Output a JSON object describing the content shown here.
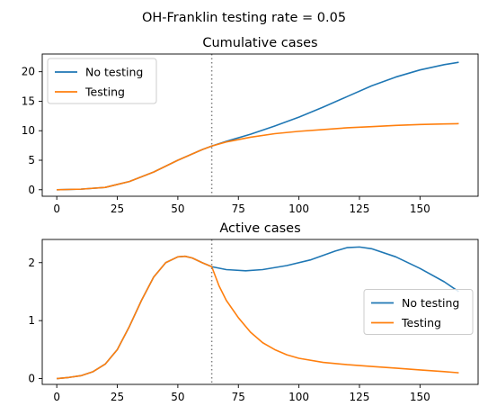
{
  "suptitle": "OH-Franklin testing rate = 0.05",
  "chart_data": [
    {
      "type": "line",
      "title": "Cumulative cases",
      "xlabel": "",
      "ylabel": "",
      "xlim": [
        -6,
        174
      ],
      "ylim": [
        -1.1,
        23
      ],
      "xticks": [
        0,
        25,
        50,
        75,
        100,
        125,
        150
      ],
      "yticks": [
        0,
        5,
        10,
        15,
        20
      ],
      "grid": false,
      "legend_position": "upper-left",
      "vline": {
        "x": 64,
        "color": "#808080",
        "style": "dotted"
      },
      "series": [
        {
          "name": "No testing",
          "color": "#1f77b4",
          "x": [
            0,
            10,
            20,
            30,
            40,
            50,
            60,
            64,
            70,
            80,
            90,
            100,
            110,
            120,
            130,
            140,
            150,
            160,
            166
          ],
          "y": [
            0,
            0.1,
            0.4,
            1.4,
            3.0,
            5.0,
            6.8,
            7.4,
            8.2,
            9.4,
            10.8,
            12.3,
            14.0,
            15.8,
            17.6,
            19.1,
            20.3,
            21.2,
            21.6
          ]
        },
        {
          "name": "Testing",
          "color": "#ff7f0e",
          "x": [
            0,
            10,
            20,
            30,
            40,
            50,
            60,
            64,
            70,
            80,
            90,
            100,
            110,
            120,
            130,
            140,
            150,
            160,
            166
          ],
          "y": [
            0,
            0.1,
            0.4,
            1.4,
            3.0,
            5.0,
            6.8,
            7.4,
            8.1,
            8.9,
            9.5,
            9.9,
            10.2,
            10.5,
            10.7,
            10.9,
            11.05,
            11.15,
            11.2
          ]
        }
      ]
    },
    {
      "type": "line",
      "title": "Active cases",
      "xlabel": "",
      "ylabel": "",
      "xlim": [
        -6,
        174
      ],
      "ylim": [
        -0.1,
        2.4
      ],
      "xticks": [
        0,
        25,
        50,
        75,
        100,
        125,
        150
      ],
      "yticks": [
        0,
        1,
        2
      ],
      "grid": false,
      "legend_position": "center-right",
      "vline": {
        "x": 64,
        "color": "#808080",
        "style": "dotted"
      },
      "series": [
        {
          "name": "No testing",
          "color": "#1f77b4",
          "x": [
            0,
            5,
            10,
            15,
            20,
            25,
            30,
            35,
            40,
            45,
            50,
            53,
            56,
            60,
            64,
            70,
            78,
            85,
            95,
            105,
            115,
            120,
            125,
            130,
            140,
            150,
            160,
            166
          ],
          "y": [
            0,
            0.02,
            0.05,
            0.12,
            0.25,
            0.5,
            0.9,
            1.35,
            1.75,
            2.0,
            2.1,
            2.11,
            2.08,
            2.0,
            1.93,
            1.88,
            1.86,
            1.88,
            1.95,
            2.05,
            2.2,
            2.26,
            2.27,
            2.24,
            2.1,
            1.9,
            1.67,
            1.5
          ]
        },
        {
          "name": "Testing",
          "color": "#ff7f0e",
          "x": [
            0,
            5,
            10,
            15,
            20,
            25,
            30,
            35,
            40,
            45,
            50,
            53,
            56,
            60,
            64,
            67,
            70,
            75,
            80,
            85,
            90,
            95,
            100,
            110,
            120,
            130,
            140,
            150,
            160,
            166
          ],
          "y": [
            0,
            0.02,
            0.05,
            0.12,
            0.25,
            0.5,
            0.9,
            1.35,
            1.75,
            2.0,
            2.1,
            2.11,
            2.08,
            2.0,
            1.93,
            1.6,
            1.35,
            1.05,
            0.8,
            0.62,
            0.5,
            0.41,
            0.35,
            0.28,
            0.24,
            0.21,
            0.18,
            0.15,
            0.12,
            0.1
          ]
        }
      ]
    }
  ]
}
